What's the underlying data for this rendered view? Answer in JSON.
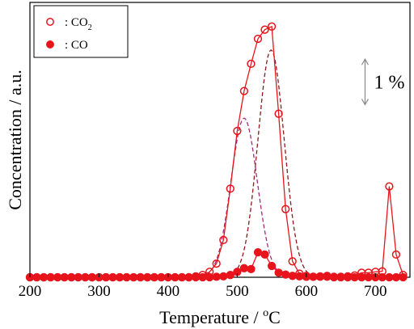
{
  "chart_data": {
    "type": "line",
    "xlabel": "Temperature / °C",
    "xlabel_parts": {
      "main": "Temperature / ",
      "sup": "o",
      "unit": "C"
    },
    "ylabel": "Concentration / a.u.",
    "xlim": [
      200,
      750
    ],
    "ylim": [
      0,
      6.05
    ],
    "xticks": [
      200,
      300,
      400,
      500,
      600,
      700
    ],
    "legend_position": "top-left",
    "scale_bar": {
      "label": "1 %",
      "value": 1,
      "x": 685,
      "y_bottom": 3.8
    },
    "series": [
      {
        "name": "CO2",
        "legend_label": {
          "prefix": ": CO",
          "sub": "2"
        },
        "marker": "open-circle",
        "color": "#e8141c",
        "x": [
          200,
          210,
          220,
          230,
          240,
          250,
          260,
          270,
          280,
          290,
          300,
          310,
          320,
          330,
          340,
          350,
          360,
          370,
          380,
          390,
          400,
          410,
          420,
          430,
          440,
          450,
          460,
          470,
          480,
          490,
          500,
          510,
          520,
          530,
          540,
          550,
          560,
          570,
          580,
          590,
          600,
          610,
          620,
          630,
          640,
          650,
          660,
          670,
          680,
          690,
          700,
          710,
          720,
          730,
          740
        ],
        "y": [
          0,
          0,
          0,
          0,
          0,
          0,
          0,
          0,
          0,
          0,
          0,
          0,
          0,
          0,
          0,
          0,
          0,
          0,
          0,
          0,
          0,
          0,
          0,
          0,
          0.02,
          0.05,
          0.12,
          0.3,
          0.82,
          1.95,
          3.22,
          4.1,
          4.7,
          5.25,
          5.45,
          5.52,
          3.6,
          1.5,
          0.35,
          0.08,
          0.03,
          0.01,
          0.02,
          0.03,
          0.01,
          0.01,
          0.02,
          0.04,
          0.1,
          0.1,
          0.12,
          0.13,
          2.0,
          0.5,
          0.05
        ]
      },
      {
        "name": "CO",
        "legend_label": {
          "prefix": ": CO",
          "sub": ""
        },
        "marker": "filled-circle",
        "color": "#e8141c",
        "x": [
          200,
          210,
          220,
          230,
          240,
          250,
          260,
          270,
          280,
          290,
          300,
          310,
          320,
          330,
          340,
          350,
          360,
          370,
          380,
          390,
          400,
          410,
          420,
          430,
          440,
          450,
          460,
          470,
          480,
          490,
          500,
          510,
          520,
          530,
          540,
          550,
          560,
          570,
          580,
          590,
          600,
          610,
          620,
          630,
          640,
          650,
          660,
          670,
          680,
          690,
          700,
          710,
          720,
          730,
          740
        ],
        "y": [
          0,
          0,
          0,
          0,
          0,
          0,
          0,
          0,
          0,
          0,
          0,
          0,
          0,
          0,
          0,
          0,
          0,
          0,
          0,
          0,
          0,
          0,
          0,
          0,
          0,
          0,
          0,
          0.01,
          0.02,
          0.05,
          0.12,
          0.2,
          0.18,
          0.55,
          0.5,
          0.25,
          0.1,
          0.06,
          0.03,
          0.02,
          0.01,
          0.01,
          0.01,
          0.01,
          0,
          0,
          0,
          0,
          0,
          0,
          0,
          0,
          0,
          0,
          0
        ]
      }
    ],
    "fit_curves": [
      {
        "style": "dashed",
        "color": "#a52a7a",
        "peak_x": 510,
        "peak_y": 3.5,
        "sigma": 19
      },
      {
        "style": "dashed",
        "color": "#8b1a1a",
        "peak_x": 549,
        "peak_y": 5.0,
        "sigma": 19
      }
    ]
  }
}
